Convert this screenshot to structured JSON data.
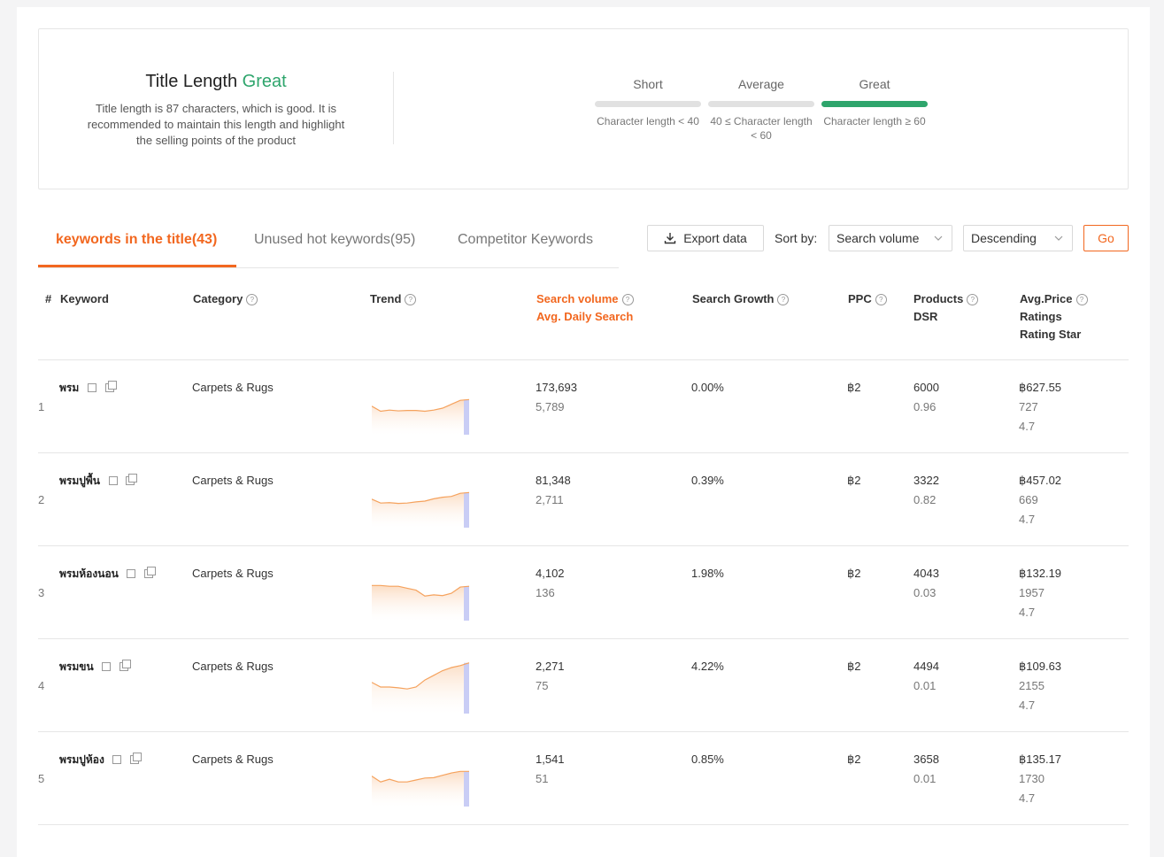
{
  "title_card": {
    "title": "Title Length",
    "rating": "Great",
    "description": "Title length is 87 characters, which is good. It is recommended to maintain this length and highlight the selling points of the product",
    "levels": [
      {
        "name": "Short",
        "desc": "Character length < 40",
        "active": false
      },
      {
        "name": "Average",
        "desc": "40 ≤ Character length < 60",
        "active": false
      },
      {
        "name": "Great",
        "desc": "Character length ≥ 60",
        "active": true
      }
    ]
  },
  "tabs": [
    {
      "label": "keywords in the title(43)",
      "active": true
    },
    {
      "label": "Unused hot keywords(95)",
      "active": false
    },
    {
      "label": "Competitor Keywords",
      "active": false
    }
  ],
  "toolbar": {
    "export_label": "Export data",
    "sort_label": "Sort by:",
    "sort_field": "Search volume",
    "sort_order": "Descending",
    "go_label": "Go"
  },
  "table": {
    "headers": {
      "index": "#",
      "keyword": "Keyword",
      "category": "Category",
      "trend": "Trend",
      "search_volume": "Search volume",
      "avg_daily": "Avg. Daily Search",
      "growth": "Search Growth",
      "ppc": "PPC",
      "products": "Products",
      "dsr": "DSR",
      "avg_price": "Avg.Price",
      "ratings": "Ratings",
      "rating_star": "Rating Star"
    },
    "rows": [
      {
        "index": "1",
        "keyword": "พรม",
        "category": "Carpets & Rugs",
        "volume": "173,693",
        "daily": "5,789",
        "growth": "0.00%",
        "ppc": "฿2",
        "products": "6000",
        "dsr": "0.96",
        "price": "฿627.55",
        "ratings": "727",
        "star": "4.7",
        "trend": [
          0.55,
          0.42,
          0.45,
          0.43,
          0.44,
          0.44,
          0.42,
          0.45,
          0.5,
          0.6,
          0.7,
          0.72
        ]
      },
      {
        "index": "2",
        "keyword": "พรมปูพื้น",
        "category": "Carpets & Rugs",
        "volume": "81,348",
        "daily": "2,711",
        "growth": "0.39%",
        "ppc": "฿2",
        "products": "3322",
        "dsr": "0.82",
        "price": "฿457.02",
        "ratings": "669",
        "star": "4.7",
        "trend": [
          0.55,
          0.45,
          0.46,
          0.44,
          0.45,
          0.48,
          0.5,
          0.56,
          0.6,
          0.62,
          0.7,
          0.72
        ]
      },
      {
        "index": "3",
        "keyword": "พรมห้องนอน",
        "category": "Carpets & Rugs",
        "volume": "4,102",
        "daily": "136",
        "growth": "1.98%",
        "ppc": "฿2",
        "products": "4043",
        "dsr": "0.03",
        "price": "฿132.19",
        "ratings": "1957",
        "star": "4.7",
        "trend": [
          0.72,
          0.72,
          0.7,
          0.7,
          0.65,
          0.6,
          0.45,
          0.48,
          0.46,
          0.52,
          0.68,
          0.7
        ]
      },
      {
        "index": "4",
        "keyword": "พรมขน",
        "category": "Carpets & Rugs",
        "volume": "2,271",
        "daily": "75",
        "growth": "4.22%",
        "ppc": "฿2",
        "products": "4494",
        "dsr": "0.01",
        "price": "฿109.63",
        "ratings": "2155",
        "star": "4.7",
        "trend": [
          0.62,
          0.5,
          0.5,
          0.48,
          0.45,
          0.5,
          0.68,
          0.8,
          0.92,
          1.0,
          1.05,
          1.12
        ]
      },
      {
        "index": "5",
        "keyword": "พรมปูห้อง",
        "category": "Carpets & Rugs",
        "volume": "1,541",
        "daily": "51",
        "growth": "0.85%",
        "ppc": "฿2",
        "products": "3658",
        "dsr": "0.01",
        "price": "฿135.17",
        "ratings": "1730",
        "star": "4.7",
        "trend": [
          0.6,
          0.45,
          0.52,
          0.45,
          0.45,
          0.5,
          0.55,
          0.56,
          0.62,
          0.68,
          0.72,
          0.72
        ]
      }
    ]
  },
  "colors": {
    "accent": "#f2671f",
    "great": "#2ea56c",
    "trend_line": "#f5a25d"
  }
}
